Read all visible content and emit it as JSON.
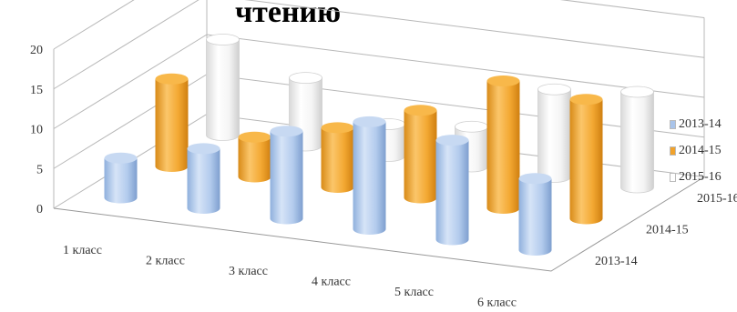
{
  "chart_data": {
    "type": "bar",
    "subtype": "3d-cylinder",
    "title": "чтению",
    "categories": [
      "1 класс",
      "2 класс",
      "3 класс",
      "4 класс",
      "5 класс",
      "6 класс"
    ],
    "series": [
      {
        "name": "2013-14",
        "color": "#a9c4ea",
        "values": [
          5,
          7.5,
          11,
          13.5,
          12.5,
          9
        ]
      },
      {
        "name": "2014-15",
        "color": "#f1a22b",
        "values": [
          11,
          5,
          7.5,
          11,
          16,
          15
        ]
      },
      {
        "name": "2015-16",
        "color": "#ffffff",
        "values": [
          12,
          8.5,
          4,
          5,
          11,
          12
        ]
      }
    ],
    "depth_labels": [
      "2015-16",
      "2014-15",
      "2013-14"
    ],
    "y_ticks": [
      0,
      5,
      10,
      15,
      20
    ],
    "ylim": [
      0,
      20
    ],
    "grid": true,
    "legend": "right"
  }
}
